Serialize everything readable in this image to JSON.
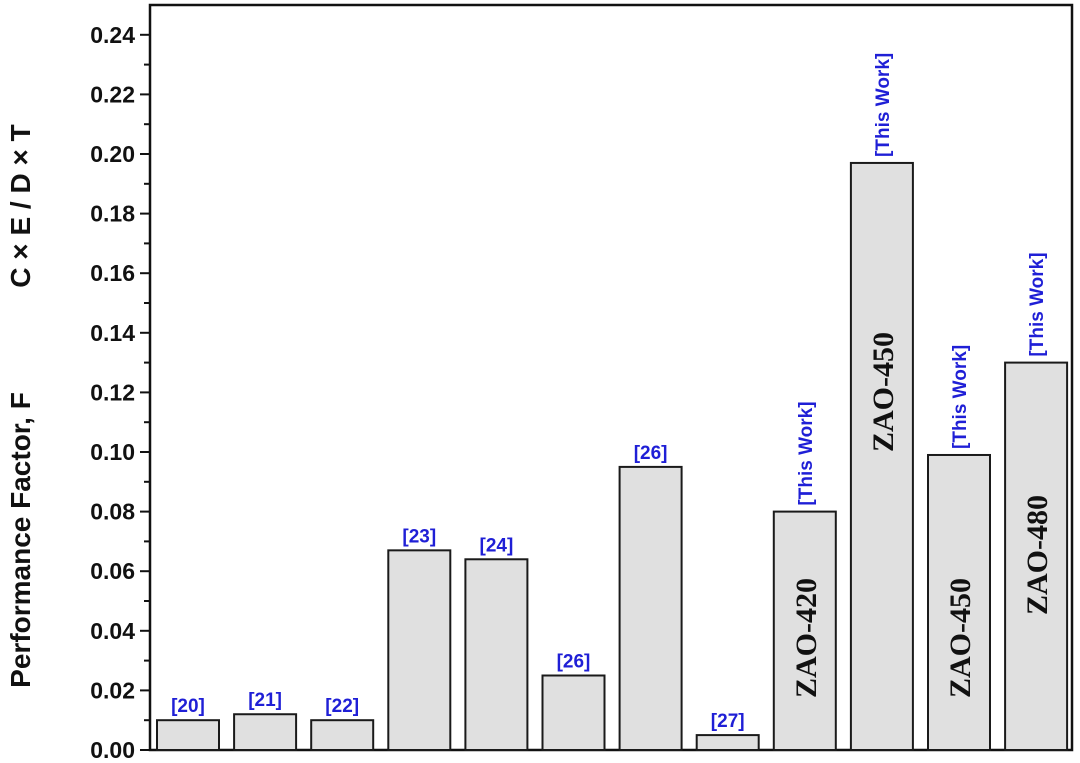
{
  "chart_data": {
    "type": "bar",
    "title": "",
    "xlabel": "",
    "ylabel_parts": [
      "Performance Factor, F",
      "C × E / D × T"
    ],
    "ylim": [
      0,
      0.25
    ],
    "yticks": [
      "0.00",
      "0.02",
      "0.04",
      "0.06",
      "0.08",
      "0.10",
      "0.12",
      "0.14",
      "0.16",
      "0.18",
      "0.20",
      "0.22",
      "0.24"
    ],
    "grid": false,
    "bars": [
      {
        "value": 0.01,
        "ref": "[20]",
        "sample": ""
      },
      {
        "value": 0.012,
        "ref": "[21]",
        "sample": ""
      },
      {
        "value": 0.01,
        "ref": "[22]",
        "sample": ""
      },
      {
        "value": 0.067,
        "ref": "[23]",
        "sample": ""
      },
      {
        "value": 0.064,
        "ref": "[24]",
        "sample": ""
      },
      {
        "value": 0.025,
        "ref": "[26]",
        "sample": ""
      },
      {
        "value": 0.095,
        "ref": "[26]",
        "sample": ""
      },
      {
        "value": 0.005,
        "ref": "[27]",
        "sample": ""
      },
      {
        "value": 0.08,
        "ref": "[This Work]",
        "sample": "ZAO-420"
      },
      {
        "value": 0.197,
        "ref": "[This Work]",
        "sample": "ZAO-450"
      },
      {
        "value": 0.099,
        "ref": "[This Work]",
        "sample": "ZAO-450"
      },
      {
        "value": 0.13,
        "ref": "[This Work]",
        "sample": "ZAO-480"
      }
    ],
    "colors": {
      "bar_fill": "#e0e0e0",
      "bar_stroke": "#1a1a1a",
      "ref_text": "#1f1fd6",
      "axis": "#111111"
    }
  }
}
